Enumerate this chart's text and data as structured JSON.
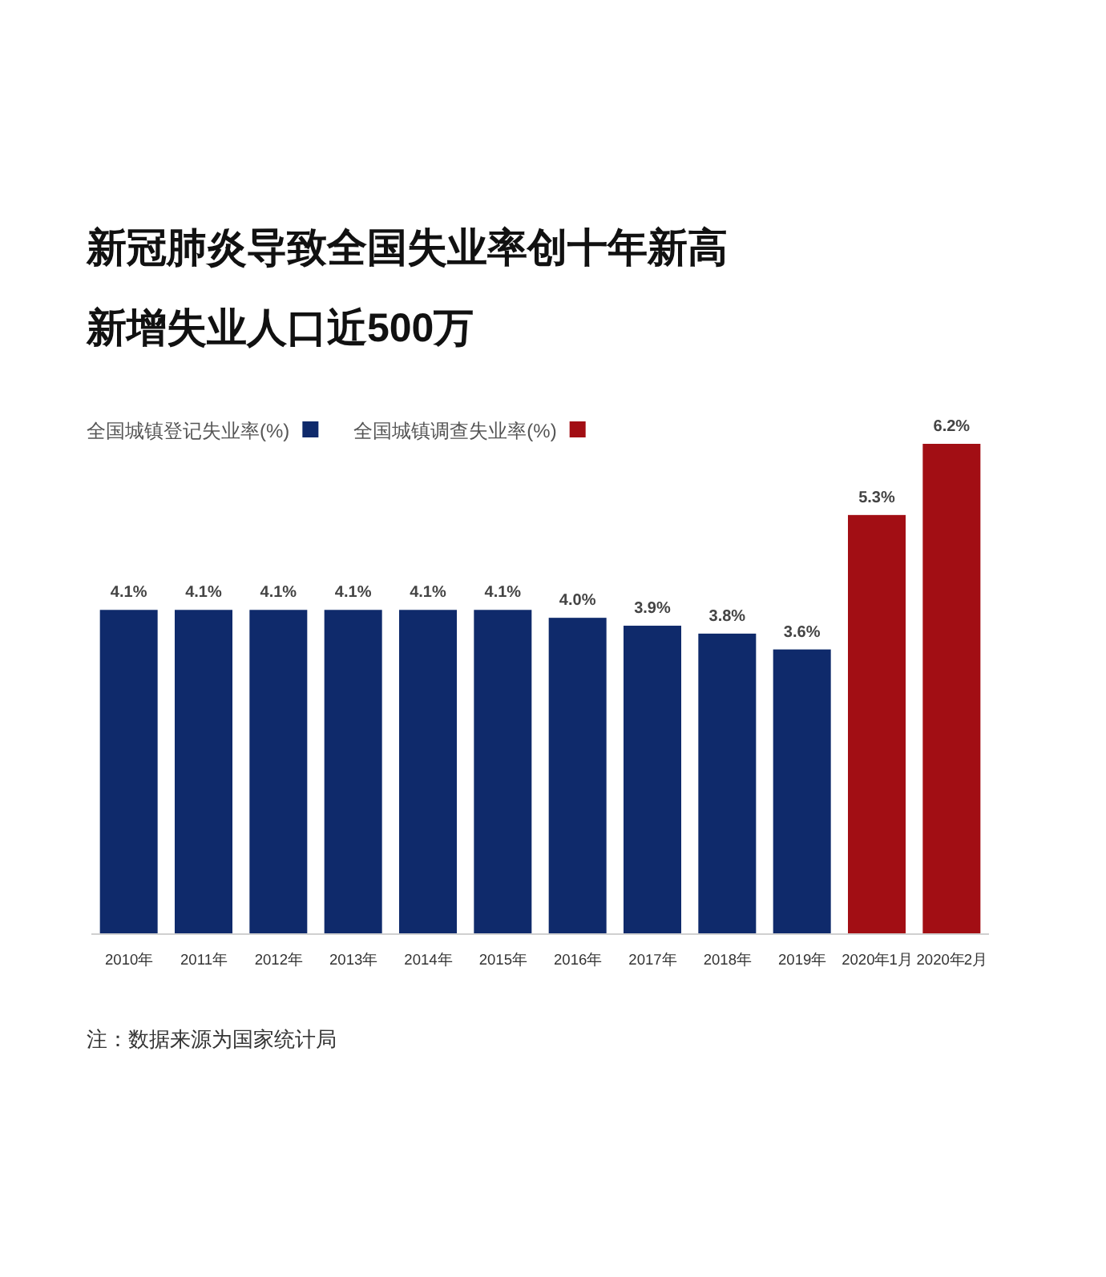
{
  "chart_data": {
    "type": "bar",
    "title": "新冠肺炎导致全国失业率创十年新高",
    "subtitle": "新增失业人口近500万",
    "categories": [
      "2010年",
      "2011年",
      "2012年",
      "2013年",
      "2014年",
      "2015年",
      "2016年",
      "2017年",
      "2018年",
      "2019年",
      "2020年1月",
      "2020年2月"
    ],
    "series": [
      {
        "name": "全国城镇登记失业率(%)",
        "color": "#0f2a6b",
        "values": [
          4.1,
          4.1,
          4.1,
          4.1,
          4.1,
          4.1,
          4.0,
          3.9,
          3.8,
          3.6,
          null,
          null
        ],
        "value_labels": [
          "4.1%",
          "4.1%",
          "4.1%",
          "4.1%",
          "4.1%",
          "4.1%",
          "4.0%",
          "3.9%",
          "3.8%",
          "3.6%",
          null,
          null
        ]
      },
      {
        "name": "全国城镇调查失业率(%)",
        "color": "#a20e14",
        "values": [
          null,
          null,
          null,
          null,
          null,
          null,
          null,
          null,
          null,
          null,
          5.3,
          6.2
        ],
        "value_labels": [
          null,
          null,
          null,
          null,
          null,
          null,
          null,
          null,
          null,
          null,
          "5.3%",
          "6.2%"
        ]
      }
    ],
    "legend": "top left",
    "annotations": [
      "注：数据来源为国家统计局"
    ]
  }
}
